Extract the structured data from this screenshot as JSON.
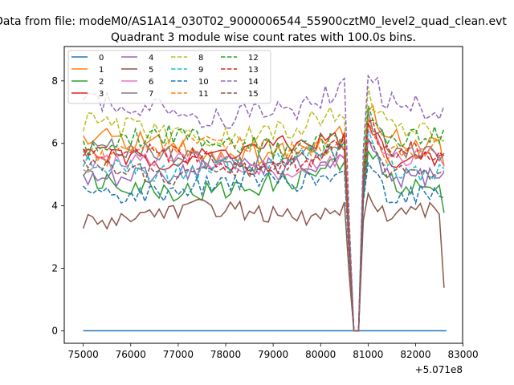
{
  "figure_title": "Data from file: modeM0/AS1A14_030T02_9000006544_55900cztM0_level2_quad_clean.evt",
  "chart_data": {
    "type": "line",
    "title": "Quadrant 3 module wise count rates with 100.0s bins.",
    "xlabel": "",
    "ylabel": "",
    "x_offset_label": "+5.071e8",
    "x_offset": 507100000,
    "xlim": [
      74600,
      82990
    ],
    "ylim": [
      -0.4,
      9.1
    ],
    "xticks": [
      75000,
      76000,
      77000,
      78000,
      79000,
      80000,
      81000,
      82000,
      83000
    ],
    "yticks": [
      0,
      2,
      4,
      6,
      8
    ],
    "grid": false,
    "legend": {
      "placement": "top-left",
      "columns": 4
    },
    "x_units_note": "x values are seconds offset from 5.071e8",
    "series": [
      {
        "name": "0",
        "color": "#1f77b4",
        "dash": "solid",
        "values": [
          [
            75000,
            0
          ],
          [
            82650,
            0
          ]
        ]
      },
      {
        "name": "1",
        "color": "#ff7f0e",
        "dash": "solid",
        "base": 5.9,
        "var": 0.35,
        "drop": 0.3
      },
      {
        "name": "2",
        "color": "#2ca02c",
        "dash": "solid",
        "base": 4.7,
        "var": 0.35,
        "drop": 1.0
      },
      {
        "name": "3",
        "color": "#d62728",
        "dash": "solid",
        "base": 5.7,
        "var": 0.3,
        "drop": 0.0
      },
      {
        "name": "4",
        "color": "#9467bd",
        "dash": "solid",
        "base": 5.1,
        "var": 0.35,
        "drop": 0.0
      },
      {
        "name": "5",
        "color": "#8c564b",
        "dash": "solid",
        "base": 3.7,
        "var": 0.3,
        "drop": 2.5
      },
      {
        "name": "6",
        "color": "#e377c2",
        "dash": "solid",
        "base": 5.3,
        "var": 0.3,
        "drop": 0.0
      },
      {
        "name": "7",
        "color": "#7f7f7f",
        "dash": "solid",
        "base": 5.6,
        "var": 0.3,
        "drop": 0.0
      },
      {
        "name": "8",
        "color": "#bcbd22",
        "dash": "dashed",
        "base": 6.4,
        "var": 0.35,
        "drop": 0.0
      },
      {
        "name": "9",
        "color": "#17becf",
        "dash": "dashed",
        "base": 5.3,
        "var": 0.3,
        "drop": 0.0
      },
      {
        "name": "10",
        "color": "#1f77b4",
        "dash": "dashed",
        "base": 4.6,
        "var": 0.3,
        "drop": 0.0
      },
      {
        "name": "11",
        "color": "#ff7f0e",
        "dash": "dashed",
        "base": 5.8,
        "var": 0.3,
        "drop": 0.0
      },
      {
        "name": "12",
        "color": "#2ca02c",
        "dash": "dashed",
        "base": 6.0,
        "var": 0.35,
        "drop": 0.0
      },
      {
        "name": "13",
        "color": "#d62728",
        "dash": "dashed",
        "base": 5.5,
        "var": 0.3,
        "drop": 0.0
      },
      {
        "name": "14",
        "color": "#9467bd",
        "dash": "dashed",
        "base": 7.1,
        "var": 0.4,
        "drop": 0.0
      },
      {
        "name": "15",
        "color": "#8c564b",
        "dash": "dashed",
        "base": 5.2,
        "var": 0.3,
        "drop": 0.0
      }
    ]
  }
}
